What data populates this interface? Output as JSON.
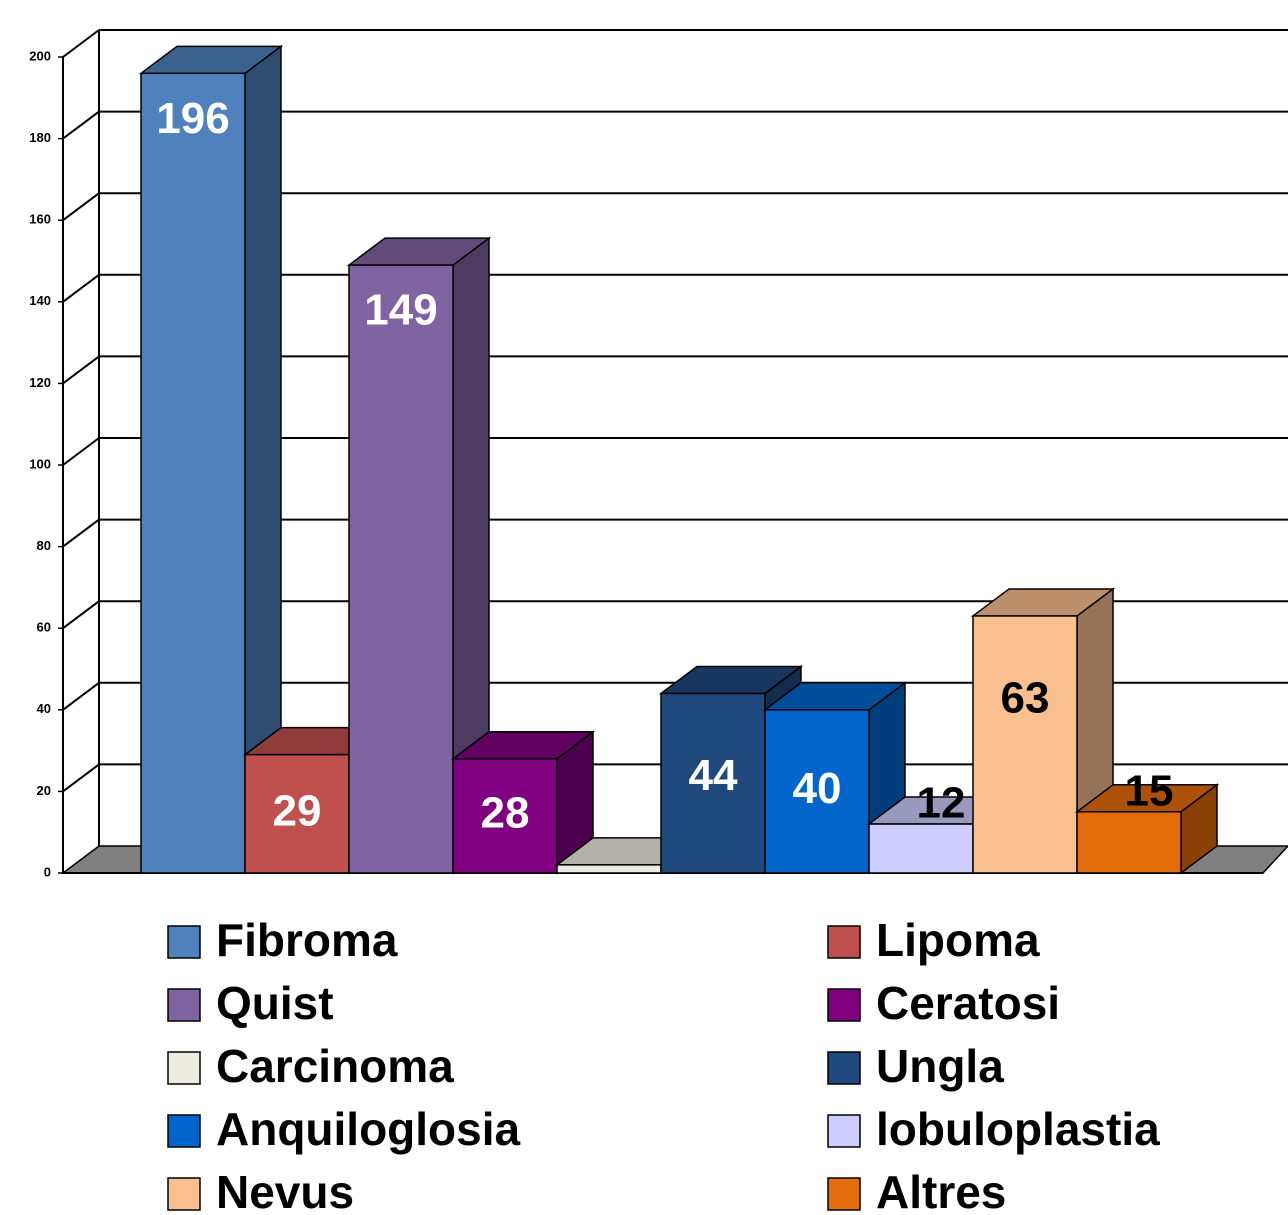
{
  "chart_data": {
    "type": "bar3d",
    "categories": [
      "Fibroma",
      "Lipoma",
      "Quist",
      "Ceratosi",
      "Carcinoma",
      "Ungla",
      "Anquiloglosia",
      "lobuloplastia",
      "Nevus",
      "Altres"
    ],
    "values": [
      196,
      29,
      149,
      28,
      2,
      44,
      40,
      12,
      63,
      15
    ],
    "value_labels": [
      "196",
      "29",
      "149",
      "28",
      null,
      "44",
      "40",
      "12",
      "63",
      "15"
    ],
    "colors": [
      "#4f81bd",
      "#c0504d",
      "#8064a2",
      "#800080",
      "#eeece1",
      "#1f497d",
      "#0066cc",
      "#ccccff",
      "#fac090",
      "#e46c0a"
    ],
    "ylim": [
      0,
      200
    ],
    "yticks": [
      0,
      20,
      40,
      60,
      80,
      100,
      120,
      140,
      160,
      180,
      200
    ],
    "grid": true
  }
}
